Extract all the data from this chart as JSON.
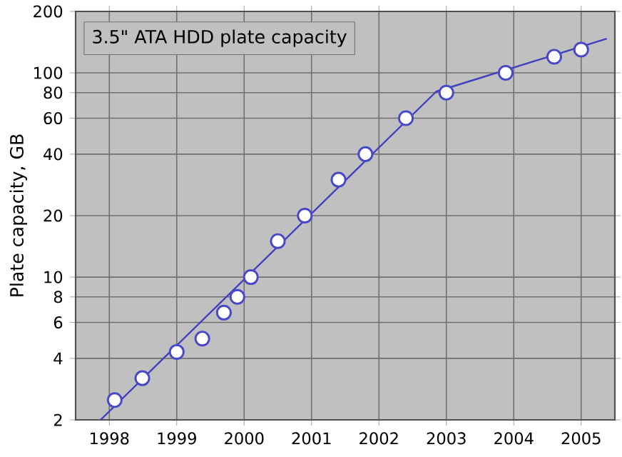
{
  "chart_data": {
    "type": "line",
    "title": "3.5\" ATA HDD plate capacity",
    "ylabel": "Plate capacity, GB",
    "log": "y",
    "grid": true,
    "xlim": [
      1997.5,
      2005.5
    ],
    "xticks": [
      1998,
      1999,
      2000,
      2001,
      2002,
      2003,
      2004,
      2005
    ],
    "ylim": [
      2,
      200
    ],
    "yticks": [
      2,
      4,
      6,
      8,
      10,
      20,
      40,
      60,
      80,
      100,
      200
    ],
    "series": [
      {
        "marker": "none",
        "color": "#4040c0",
        "x": [
          1997.87,
          2002.85,
          2005.38
        ],
        "values": [
          2,
          81,
          147
        ]
      },
      {
        "type": "scatter",
        "marker": "circle",
        "color": "#4848c8",
        "x": [
          1998.08,
          1998.49,
          1999.0,
          1999.38,
          1999.7,
          1999.9,
          2000.1,
          2000.5,
          2000.9,
          2001.4,
          2001.8,
          2002.4,
          2003.0,
          2003.88,
          2004.6,
          2005.0
        ],
        "values": [
          2.5,
          3.2,
          4.3,
          5,
          6.7,
          8,
          10,
          15,
          20,
          30,
          40,
          60,
          80,
          100,
          120,
          130
        ]
      }
    ]
  }
}
